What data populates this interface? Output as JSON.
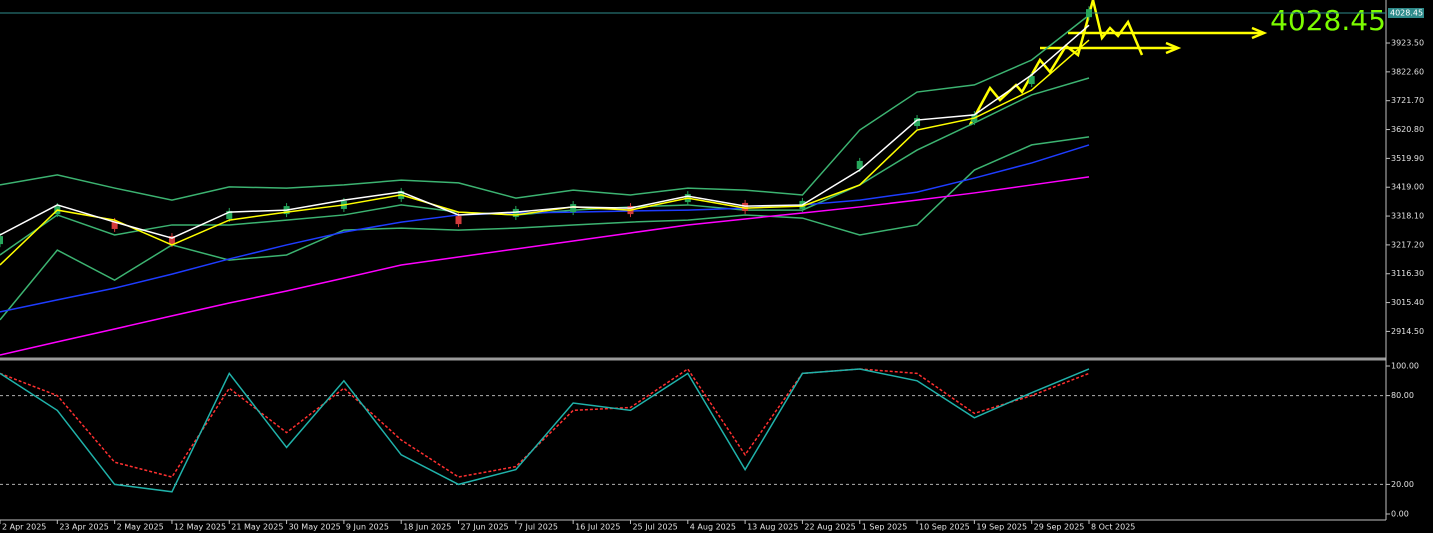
{
  "chart_data": {
    "type": "price",
    "categories": [
      "2 Apr 2025",
      "23 Apr 2025",
      "2 May 2025",
      "12 May 2025",
      "21 May 2025",
      "30 May 2025",
      "9 Jun 2025",
      "18 Jun 2025",
      "27 Jun 2025",
      "7 Jul 2025",
      "16 Jul 2025",
      "25 Jul 2025",
      "4 Aug 2025",
      "13 Aug 2025",
      "22 Aug 2025",
      "1 Sep 2025",
      "10 Sep 2025",
      "19 Sep 2025",
      "29 Sep 2025",
      "8 Oct 2025"
    ],
    "ylim": [
      2825,
      4074
    ],
    "yticks": [
      {
        "value": 3923.5,
        "label": "3923.50"
      },
      {
        "value": 3822.6,
        "label": "3822.60"
      },
      {
        "value": 3721.7,
        "label": "3721.70"
      },
      {
        "value": 3620.8,
        "label": "3620.80"
      },
      {
        "value": 3519.9,
        "label": "3519.90"
      },
      {
        "value": 3419,
        "label": "3419.00"
      },
      {
        "value": 3318.1,
        "label": "3318.10"
      },
      {
        "value": 3217.2,
        "label": "3217.20"
      },
      {
        "value": 3116.3,
        "label": "3116.30"
      },
      {
        "value": 3015.4,
        "label": "3015.40"
      },
      {
        "value": 2914.5,
        "label": "2914.50"
      }
    ],
    "last_price": 4028.45,
    "series": [
      {
        "style": "line",
        "color": "#3cb371",
        "values": [
          3427,
          3462,
          3416,
          3374,
          3420,
          3416,
          3427,
          3444,
          3434,
          3381,
          3409,
          3392,
          3416,
          3409,
          3392,
          3619,
          3752,
          3777,
          3864,
          4021
        ]
      },
      {
        "style": "line",
        "color": "#3cb371",
        "values": [
          3182,
          3322,
          3252,
          3287,
          3287,
          3304,
          3322,
          3357,
          3332,
          3322,
          3339,
          3350,
          3357,
          3339,
          3339,
          3427,
          3549,
          3644,
          3742,
          3801
        ]
      },
      {
        "style": "line",
        "color": "#3cb371",
        "values": [
          2955,
          3199,
          3094,
          3217,
          3164,
          3182,
          3269,
          3276,
          3269,
          3276,
          3287,
          3297,
          3304,
          3322,
          3311,
          3252,
          3287,
          3479,
          3567,
          3595
        ]
      },
      {
        "style": "line",
        "color": "#ff00ff",
        "values": [
          2832,
          2878,
          2923,
          2969,
          3014,
          3056,
          3101,
          3147,
          3175,
          3203,
          3231,
          3259,
          3287,
          3308,
          3329,
          3350,
          3374,
          3399,
          3427,
          3455
        ]
      },
      {
        "style": "line",
        "color": "#1e3cff",
        "values": [
          2983,
          3025,
          3066,
          3115,
          3168,
          3217,
          3262,
          3297,
          3322,
          3329,
          3332,
          3336,
          3339,
          3346,
          3357,
          3374,
          3402,
          3451,
          3504,
          3567
        ]
      },
      {
        "style": "candles",
        "up_color": "#26a65b",
        "down_color": "#d23c3c",
        "values": [
          3234,
          3339,
          3287,
          3234,
          3322,
          3339,
          3357,
          3392,
          3304,
          3329,
          3346,
          3339,
          3381,
          3350,
          3357,
          3497,
          3647,
          3661,
          3794,
          4028
        ]
      },
      {
        "style": "line",
        "color": "#ffff00",
        "values": [
          3147,
          3339,
          3304,
          3217,
          3304,
          3332,
          3357,
          3392,
          3332,
          3322,
          3350,
          3339,
          3381,
          3346,
          3353,
          3427,
          3619,
          3661,
          3759,
          3934
        ]
      },
      {
        "style": "line",
        "color": "#ffffff",
        "values": [
          3252,
          3357,
          3297,
          3241,
          3332,
          3339,
          3374,
          3402,
          3322,
          3332,
          3350,
          3346,
          3388,
          3353,
          3357,
          3479,
          3654,
          3672,
          3812,
          3986
        ]
      }
    ],
    "annotation": "4028.45",
    "oscillator": {
      "ylim": [
        0,
        100
      ],
      "yticks": [
        {
          "value": 100,
          "label": "100.00"
        },
        {
          "value": 80,
          "label": "80.00"
        },
        {
          "value": 20,
          "label": "20.00"
        },
        {
          "value": 0,
          "label": "0.00"
        }
      ],
      "levels": [
        80,
        20
      ],
      "series": [
        {
          "color": "#ff3030",
          "dash": true,
          "values": [
            95,
            80,
            35,
            25,
            85,
            55,
            85,
            50,
            25,
            32,
            70,
            72,
            98,
            40,
            95,
            98,
            95,
            68,
            80,
            95
          ]
        },
        {
          "color": "#20b2aa",
          "dash": false,
          "values": [
            95,
            70,
            20,
            15,
            95,
            45,
            90,
            40,
            20,
            30,
            75,
            70,
            95,
            30,
            95,
            98,
            90,
            65,
            82,
            98
          ]
        }
      ]
    }
  }
}
